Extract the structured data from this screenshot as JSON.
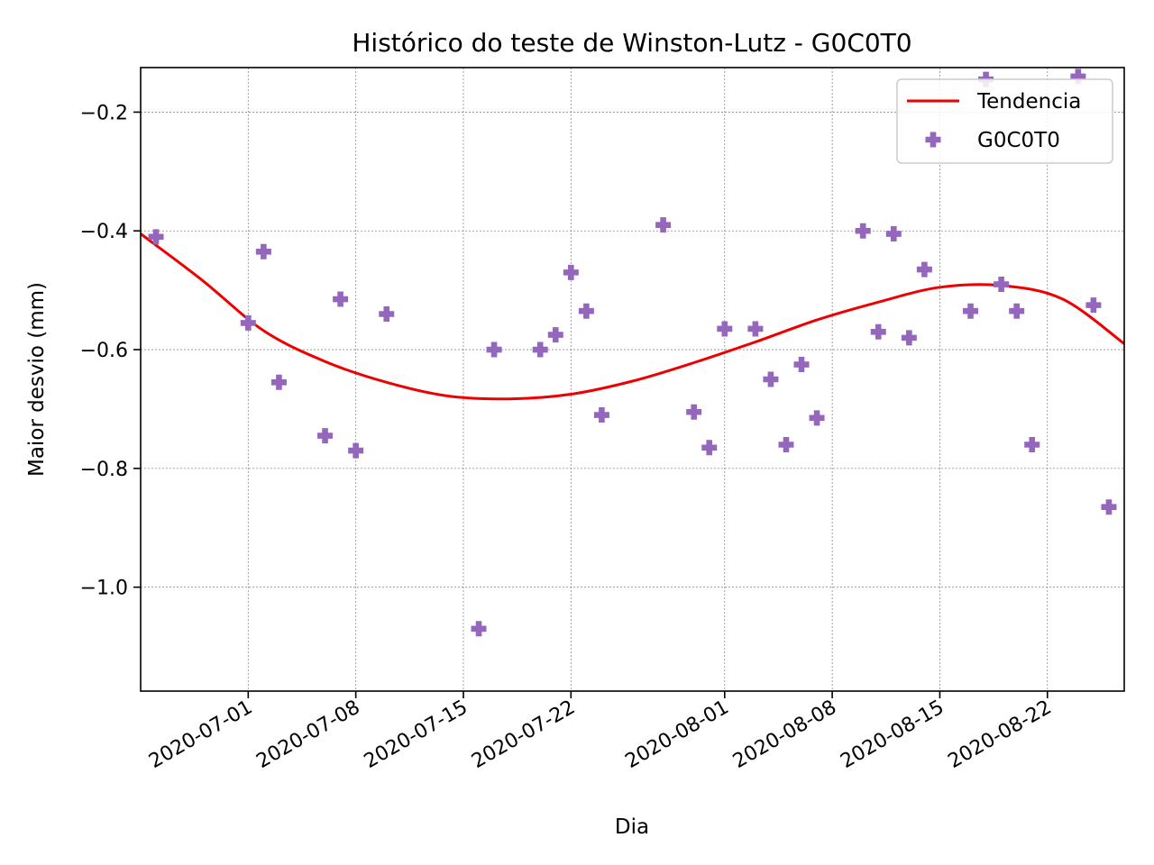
{
  "chart_data": {
    "type": "scatter",
    "title": "Histórico do teste de Winston-Lutz - G0C0T0",
    "xlabel": "Dia",
    "ylabel": "Maior desvio (mm)",
    "x_axis_type": "date",
    "xlim": [
      "2020-06-24",
      "2020-08-27"
    ],
    "ylim": [
      -1.175,
      -0.125
    ],
    "x_ticks": [
      "2020-07-01",
      "2020-07-08",
      "2020-07-15",
      "2020-07-22",
      "2020-08-01",
      "2020-08-08",
      "2020-08-15",
      "2020-08-22"
    ],
    "y_ticks": [
      -1.0,
      -0.8,
      -0.6,
      -0.4,
      -0.2
    ],
    "y_tick_labels": [
      "−1.0",
      "−0.8",
      "−0.6",
      "−0.4",
      "−0.2"
    ],
    "grid": true,
    "legend_position": "top-right",
    "colors": {
      "trend": "#ee0000",
      "points": "#9467bd"
    },
    "series": [
      {
        "name": "Tendencia",
        "kind": "line",
        "color": "#ee0000",
        "x": [
          "2020-06-24",
          "2020-06-28",
          "2020-07-02",
          "2020-07-06",
          "2020-07-10",
          "2020-07-14",
          "2020-07-18",
          "2020-07-22",
          "2020-07-26",
          "2020-07-30",
          "2020-08-03",
          "2020-08-07",
          "2020-08-11",
          "2020-08-15",
          "2020-08-19",
          "2020-08-23",
          "2020-08-27"
        ],
        "values": [
          -0.405,
          -0.483,
          -0.568,
          -0.62,
          -0.655,
          -0.678,
          -0.683,
          -0.675,
          -0.653,
          -0.622,
          -0.587,
          -0.55,
          -0.52,
          -0.495,
          -0.492,
          -0.515,
          -0.59
        ]
      },
      {
        "name": "G0C0T0",
        "kind": "scatter",
        "marker": "plus-filled",
        "color": "#9467bd",
        "x": [
          "2020-06-25",
          "2020-07-01",
          "2020-07-02",
          "2020-07-03",
          "2020-07-06",
          "2020-07-07",
          "2020-07-08",
          "2020-07-10",
          "2020-07-16",
          "2020-07-17",
          "2020-07-20",
          "2020-07-21",
          "2020-07-22",
          "2020-07-23",
          "2020-07-24",
          "2020-07-28",
          "2020-07-30",
          "2020-07-31",
          "2020-08-01",
          "2020-08-03",
          "2020-08-04",
          "2020-08-05",
          "2020-08-06",
          "2020-08-07",
          "2020-08-10",
          "2020-08-11",
          "2020-08-12",
          "2020-08-13",
          "2020-08-14",
          "2020-08-17",
          "2020-08-18",
          "2020-08-19",
          "2020-08-20",
          "2020-08-21",
          "2020-08-24",
          "2020-08-25",
          "2020-08-26"
        ],
        "values": [
          -0.41,
          -0.555,
          -0.435,
          -0.655,
          -0.745,
          -0.515,
          -0.77,
          -0.54,
          -1.07,
          -0.6,
          -0.6,
          -0.575,
          -0.47,
          -0.535,
          -0.71,
          -0.39,
          -0.705,
          -0.765,
          -0.565,
          -0.565,
          -0.65,
          -0.76,
          -0.625,
          -0.715,
          -0.4,
          -0.57,
          -0.405,
          -0.58,
          -0.465,
          -0.535,
          -0.145,
          -0.49,
          -0.535,
          -0.76,
          -0.14,
          -0.525,
          -0.865
        ]
      }
    ]
  }
}
